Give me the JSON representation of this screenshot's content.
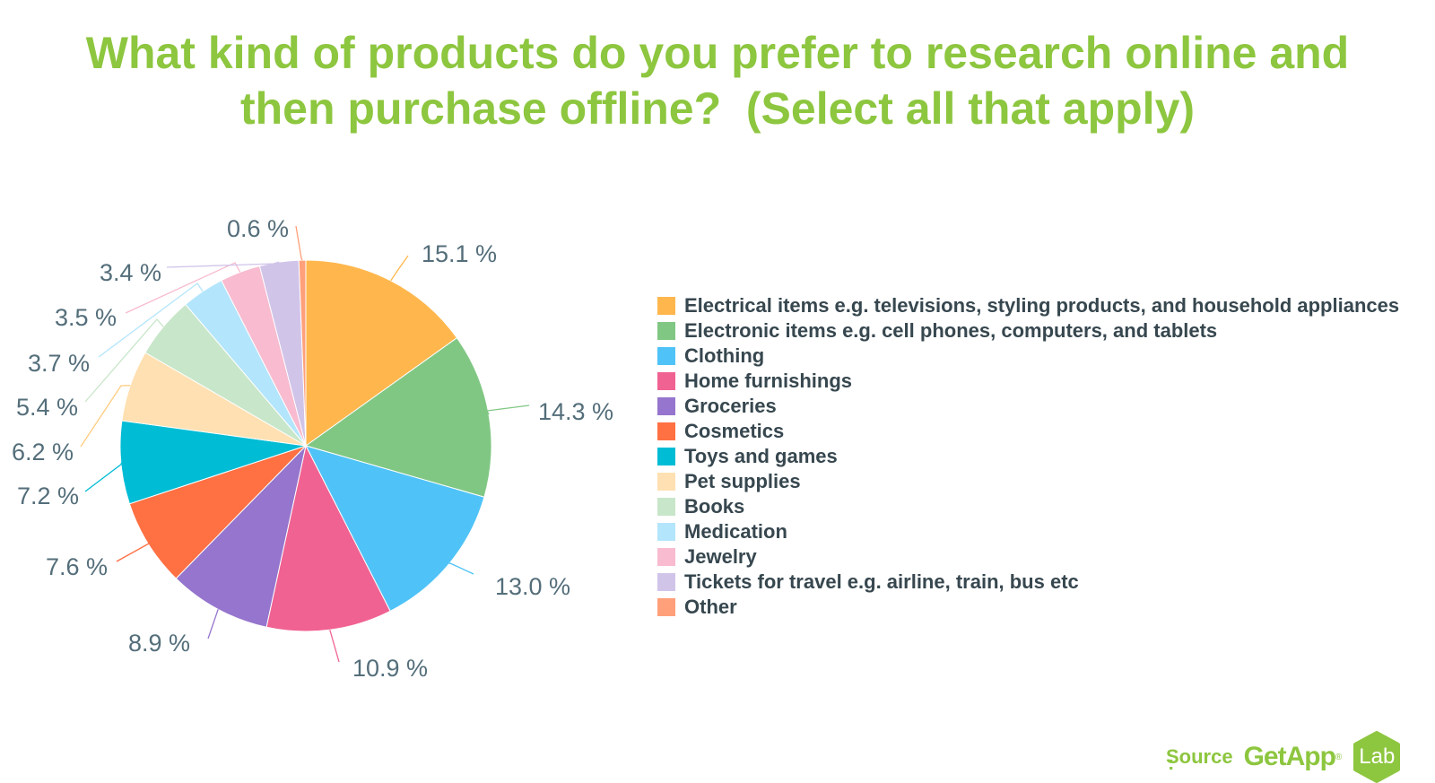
{
  "title": {
    "line1": "What kind of products do you prefer to research online and",
    "line2": "then purchase offline?  (Select all that apply)"
  },
  "source": {
    "label": "Source",
    "colon": ":",
    "brand": "GetApp",
    "reg": "®",
    "badge": "Lab"
  },
  "colors": {
    "accent": "#8dc63f",
    "text": "#37474f",
    "data_label": "#546e7a"
  },
  "chart_data": {
    "type": "pie",
    "title": "What kind of products do you prefer to research online and then purchase offline?  (Select all that apply)",
    "legend_position": "right",
    "categories": [
      "Electrical items e.g. televisions, styling products, and household appliances",
      "Electronic items e.g. cell phones, computers, and tablets",
      "Clothing",
      "Home furnishings",
      "Groceries",
      "Cosmetics",
      "Toys and games",
      "Pet supplies",
      "Books",
      "Medication",
      "Jewelry",
      "Tickets for travel e.g. airline, train, bus etc",
      "Other"
    ],
    "values": [
      15.1,
      14.3,
      13.0,
      10.9,
      8.9,
      7.6,
      7.2,
      6.2,
      5.4,
      3.7,
      3.5,
      3.4,
      0.6
    ],
    "labels": [
      "15.1 %",
      "14.3 %",
      "13.0 %",
      "10.9 %",
      "8.9 %",
      "7.6 %",
      "7.2 %",
      "6.2 %",
      "5.4 %",
      "3.7 %",
      "3.5 %",
      "3.4 %",
      "0.6 %"
    ],
    "colors": [
      "#ffb74d",
      "#81c784",
      "#4fc3f7",
      "#f06292",
      "#9575cd",
      "#ff7043",
      "#00bcd4",
      "#ffe0b2",
      "#c8e6c9",
      "#b3e5fc",
      "#f8bbd0",
      "#d1c4e9",
      "#ffa07a"
    ]
  }
}
